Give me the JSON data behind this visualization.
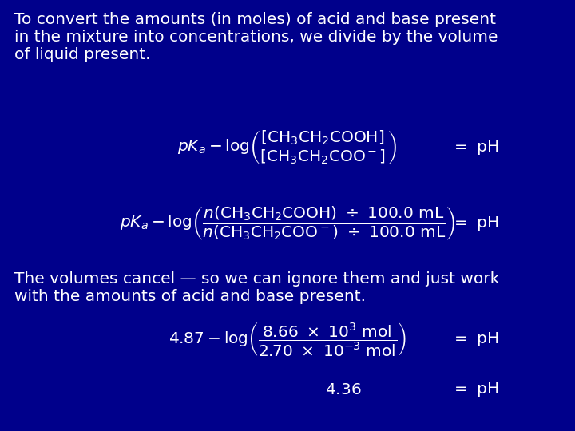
{
  "bg_color": "#00008B",
  "text_color": "#FFFFFF",
  "figsize": [
    7.2,
    5.4
  ],
  "dpi": 100,
  "title_lines": [
    "To convert the amounts (in moles) of acid and base present",
    "in the mixture into concentrations, we divide by the volume",
    "of liquid present."
  ],
  "middle_lines": [
    "The volumes cancel — so we can ignore them and just work",
    "with the amounts of acid and base present."
  ]
}
